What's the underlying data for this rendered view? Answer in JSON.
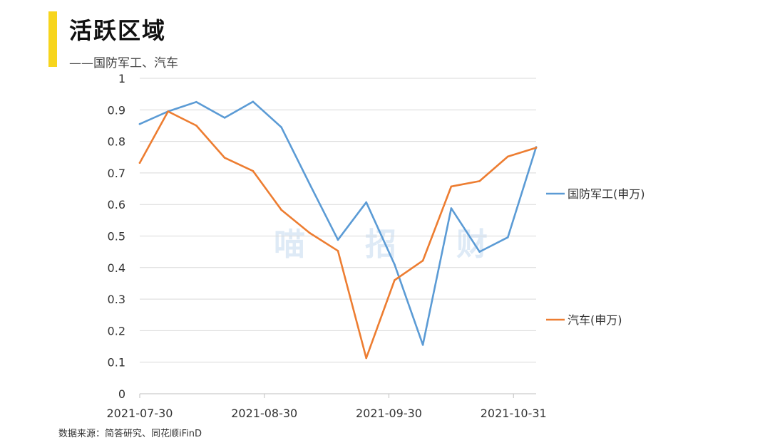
{
  "header": {
    "title": "活跃区域",
    "subtitle": "——国防军工、汽车"
  },
  "watermark": [
    "喵",
    "招",
    "财"
  ],
  "source": "数据来源：简答研究、同花顺iFinD",
  "colors": {
    "accent": "#f7d51d",
    "series1": "#5b9bd5",
    "series2": "#ed7d31"
  },
  "chart_data": {
    "type": "line",
    "title": "活跃区域",
    "xlabel": "",
    "ylabel": "",
    "ylim": [
      0,
      1
    ],
    "yticks": [
      "0",
      "0.1",
      "0.2",
      "0.3",
      "0.4",
      "0.5",
      "0.6",
      "0.7",
      "0.8",
      "0.9",
      "1"
    ],
    "xtick_labels": [
      "2021-07-30",
      "2021-08-30",
      "2021-09-30",
      "2021-10-31"
    ],
    "xtick_index": [
      0,
      4.4,
      8.8,
      13.2
    ],
    "grid": true,
    "series": [
      {
        "name": "国防军工(申万)",
        "color": "#5b9bd5",
        "values": [
          0.855,
          0.895,
          0.925,
          0.875,
          0.926,
          0.845,
          0.665,
          0.488,
          0.607,
          0.41,
          0.155,
          0.588,
          0.45,
          0.496,
          0.782
        ]
      },
      {
        "name": "汽车(申万)",
        "color": "#ed7d31",
        "values": [
          0.732,
          0.895,
          0.85,
          0.748,
          0.706,
          0.583,
          0.51,
          0.453,
          0.113,
          0.36,
          0.422,
          0.657,
          0.674,
          0.752,
          0.78
        ]
      }
    ]
  }
}
